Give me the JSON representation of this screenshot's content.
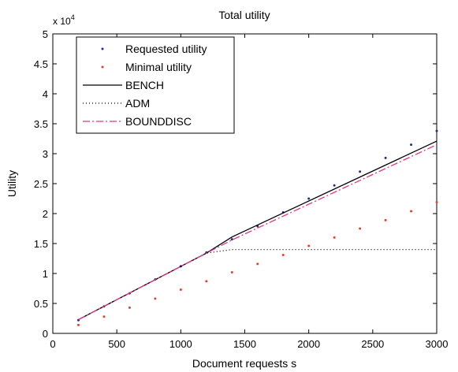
{
  "chart_data": {
    "type": "line",
    "title": "Total utility",
    "xlabel": "Document requests s",
    "ylabel": "Utility",
    "y_exponent_prefix": "x 10",
    "y_exponent_power": "4",
    "xlim": [
      0,
      3000
    ],
    "ylim": [
      0,
      50000
    ],
    "x_ticks": [
      0,
      500,
      1000,
      1500,
      2000,
      2500,
      3000
    ],
    "x_tick_labels": [
      "0",
      "500",
      "1000",
      "1500",
      "2000",
      "2500",
      "3000"
    ],
    "y_ticks": [
      0,
      5000,
      10000,
      15000,
      20000,
      25000,
      30000,
      35000,
      40000,
      45000,
      50000
    ],
    "y_tick_labels": [
      "0",
      "0.5",
      "1",
      "1.5",
      "2",
      "2.5",
      "3",
      "3.5",
      "4",
      "4.5",
      "5"
    ],
    "grid": false,
    "legend_position": "top-left",
    "series": [
      {
        "name": "Requested utility",
        "style": "dots",
        "color": "#1f2f8f",
        "x": [
          200,
          400,
          600,
          800,
          1000,
          1200,
          1400,
          1600,
          1800,
          2000,
          2200,
          2400,
          2600,
          2800,
          3000
        ],
        "y": [
          2200,
          4500,
          6700,
          9000,
          11200,
          13500,
          15700,
          17900,
          20200,
          22500,
          24700,
          27000,
          29300,
          31500,
          33800
        ]
      },
      {
        "name": "Minimal utility",
        "style": "dots",
        "color": "#e8402c",
        "x": [
          200,
          400,
          600,
          800,
          1000,
          1200,
          1400,
          1600,
          1800,
          2000,
          2200,
          2400,
          2600,
          2800,
          3000
        ],
        "y": [
          1400,
          2800,
          4300,
          5800,
          7300,
          8700,
          10200,
          11600,
          13100,
          14600,
          16000,
          17500,
          18900,
          20400,
          21900
        ]
      },
      {
        "name": "BENCH",
        "style": "solid",
        "color": "#000000",
        "x": [
          200,
          1200,
          1400,
          3000
        ],
        "y": [
          2300,
          13400,
          16100,
          32100
        ]
      },
      {
        "name": "ADM",
        "style": "dotted",
        "color": "#000000",
        "x": [
          200,
          1200,
          1400,
          3000
        ],
        "y": [
          2300,
          13400,
          14000,
          14000
        ]
      },
      {
        "name": "BOUNDDISC",
        "style": "dashdot",
        "color": "#e6338c",
        "x": [
          200,
          1200,
          1400,
          3000
        ],
        "y": [
          2300,
          13400,
          15600,
          31500
        ]
      }
    ]
  }
}
